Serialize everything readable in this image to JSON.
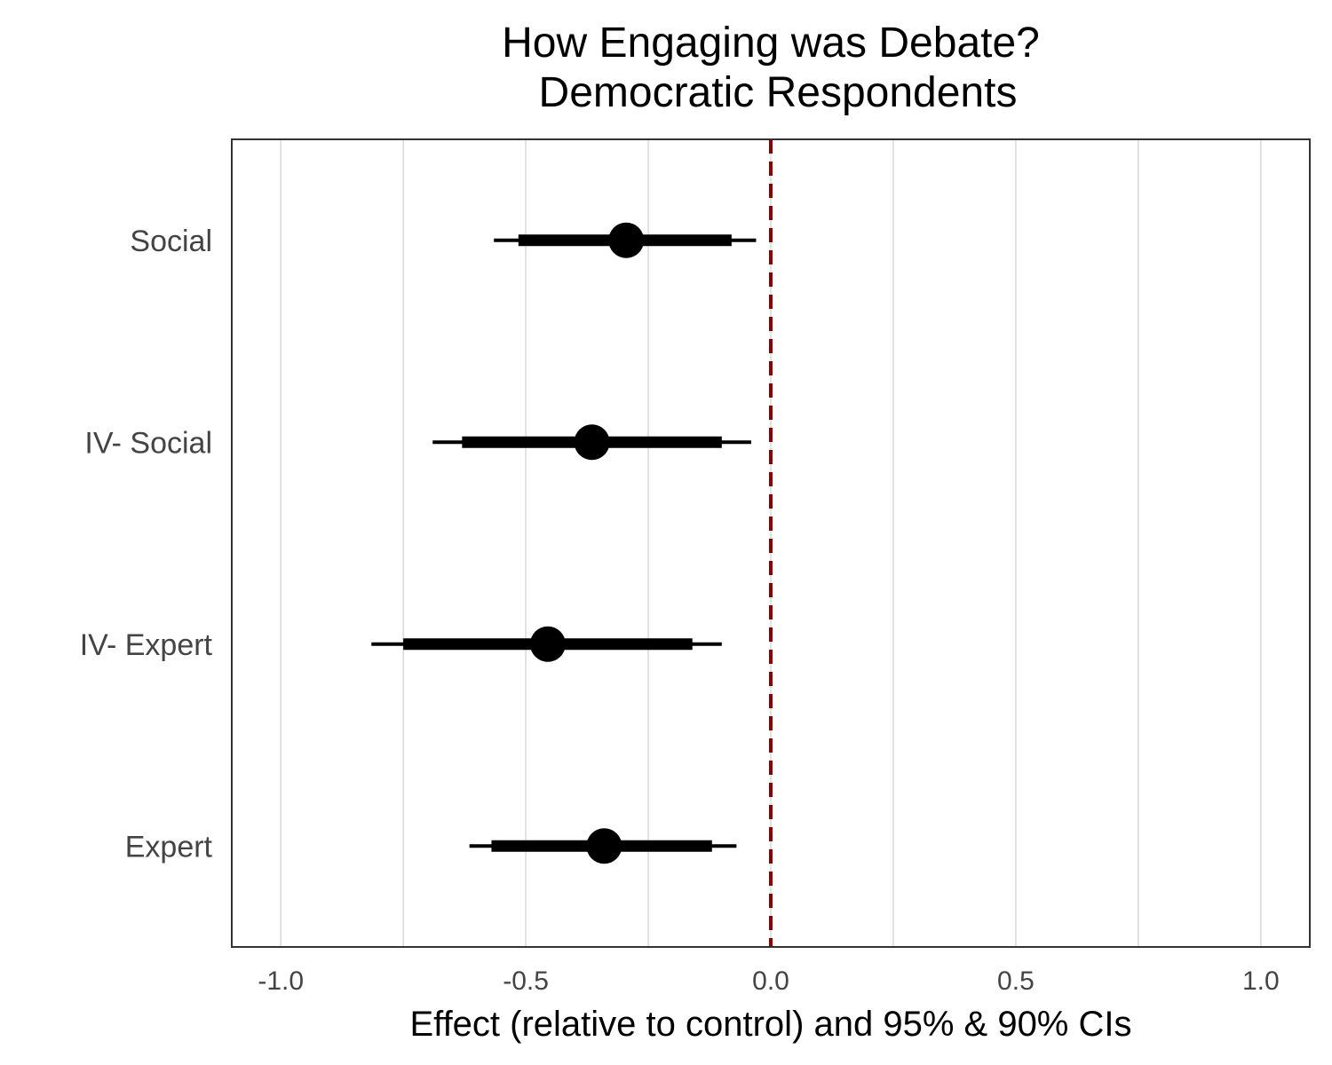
{
  "chart_data": {
    "type": "scatter",
    "title_line1": "How Engaging was Debate?",
    "title_line2": "Democratic Respondents",
    "xlabel": "Effect (relative to control) and 95% & 90% CIs",
    "ylabel": "",
    "xlim": [
      -1.1,
      1.1
    ],
    "x_ticks": [
      -1.0,
      -0.5,
      0.0,
      0.5,
      1.0
    ],
    "x_tick_labels": [
      "-1.0",
      "-0.5",
      "0.0",
      "0.5",
      "1.0"
    ],
    "grid": "vertical",
    "reference_line": {
      "x": 0.0,
      "style": "dashed",
      "color": "#8b0000"
    },
    "categories": [
      "Social",
      "IV- Social",
      "IV- Expert",
      "Expert"
    ],
    "estimates": [
      {
        "label": "Social",
        "estimate": -0.295,
        "ci95": [
          -0.565,
          -0.03
        ],
        "ci90": [
          -0.515,
          -0.08
        ]
      },
      {
        "label": "IV- Social",
        "estimate": -0.365,
        "ci95": [
          -0.69,
          -0.04
        ],
        "ci90": [
          -0.63,
          -0.1
        ]
      },
      {
        "label": "IV- Expert",
        "estimate": -0.455,
        "ci95": [
          -0.815,
          -0.1
        ],
        "ci90": [
          -0.75,
          -0.16
        ]
      },
      {
        "label": "Expert",
        "estimate": -0.34,
        "ci95": [
          -0.615,
          -0.07
        ],
        "ci90": [
          -0.57,
          -0.12
        ]
      }
    ],
    "colors": {
      "point": "#000000",
      "grid": "#d9d9d9",
      "panel_border": "#333333"
    }
  }
}
